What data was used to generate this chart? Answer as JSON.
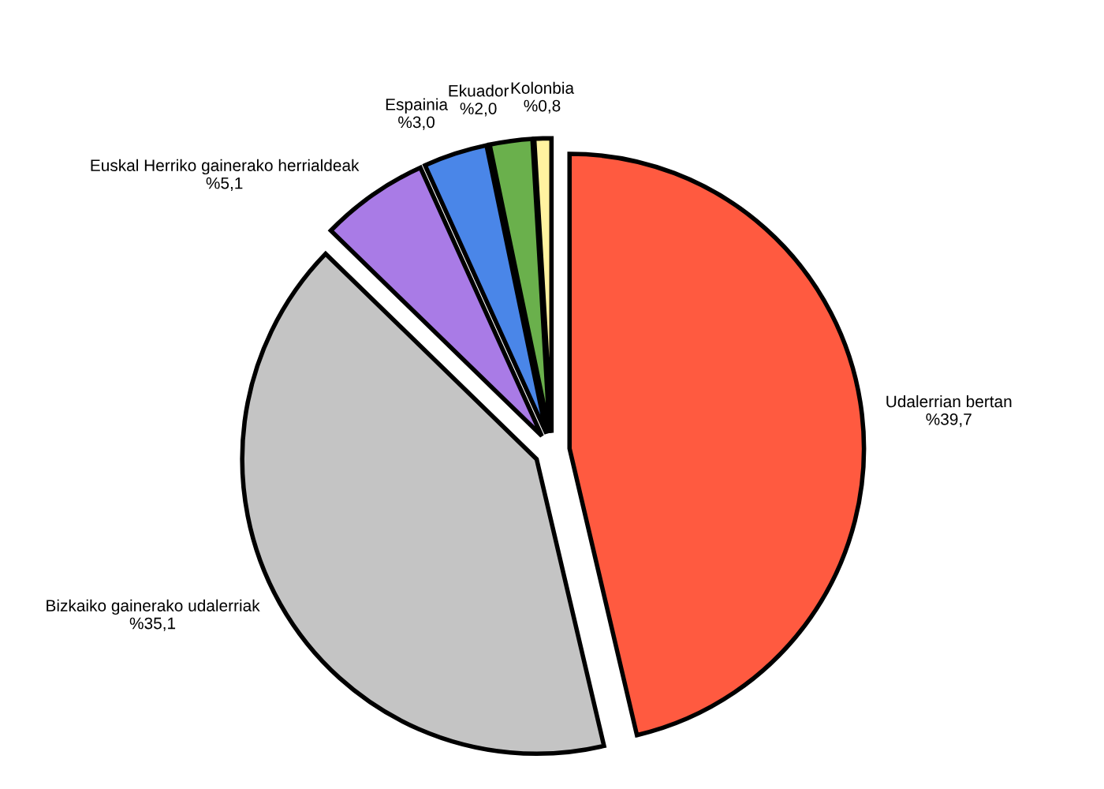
{
  "chart_data": {
    "type": "pie",
    "categories": [
      "Udalerrian bertan",
      "Bizkaiko gainerako udalerriak",
      "Euskal Herriko gainerako herrialdeak",
      "Espainia",
      "Ekuador",
      "Kolonbia"
    ],
    "values": [
      39.7,
      35.1,
      5.1,
      3.0,
      2.0,
      0.8
    ],
    "value_labels": [
      "%39,7",
      "%35,1",
      "%5,1",
      "%3,0",
      "%2,0",
      "%0,8"
    ],
    "colors": [
      "#ff5a40",
      "#c4c4c4",
      "#a97be6",
      "#4a86e8",
      "#6ab04c",
      "#fff2a0"
    ],
    "legend": false
  }
}
